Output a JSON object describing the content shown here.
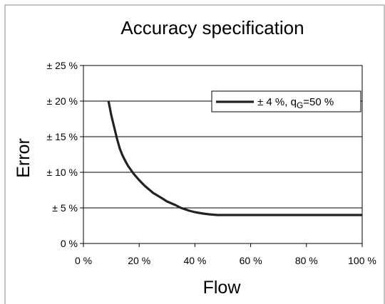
{
  "chart_data": {
    "type": "line",
    "title": "Accuracy specification",
    "xlabel": "Flow",
    "ylabel": "Error",
    "xlim": [
      0,
      100
    ],
    "ylim": [
      0,
      25
    ],
    "grid": "horizontal",
    "legend_position": "top-right",
    "x_ticks": [
      {
        "value": 0,
        "label": "0 %"
      },
      {
        "value": 20,
        "label": "20 %"
      },
      {
        "value": 40,
        "label": "40 %"
      },
      {
        "value": 60,
        "label": "60 %"
      },
      {
        "value": 80,
        "label": "80 %"
      },
      {
        "value": 100,
        "label": "100 %"
      }
    ],
    "y_ticks": [
      {
        "value": 0,
        "label": "0 %"
      },
      {
        "value": 5,
        "label": "± 5 %"
      },
      {
        "value": 10,
        "label": "± 10 %"
      },
      {
        "value": 15,
        "label": "± 15 %"
      },
      {
        "value": 20,
        "label": "± 20 %"
      },
      {
        "value": 25,
        "label": "± 25 %"
      }
    ],
    "series": [
      {
        "legend_main": "± 4 %, q",
        "legend_sub": "G",
        "legend_tail": "=50 %",
        "color": "#222222",
        "x": [
          9,
          10,
          11,
          12,
          13,
          14,
          15,
          16,
          18,
          20,
          22,
          25,
          28,
          30,
          33,
          35,
          38,
          40,
          43,
          45,
          48,
          50,
          55,
          60,
          70,
          80,
          90,
          100
        ],
        "y": [
          20,
          18,
          16.4,
          14.8,
          13.4,
          12.4,
          11.6,
          10.9,
          9.8,
          8.9,
          8.1,
          7.1,
          6.4,
          5.9,
          5.4,
          5.0,
          4.6,
          4.4,
          4.2,
          4.1,
          4.0,
          4.0,
          4.0,
          4.0,
          4.0,
          4.0,
          4.0,
          4.0
        ]
      }
    ]
  }
}
